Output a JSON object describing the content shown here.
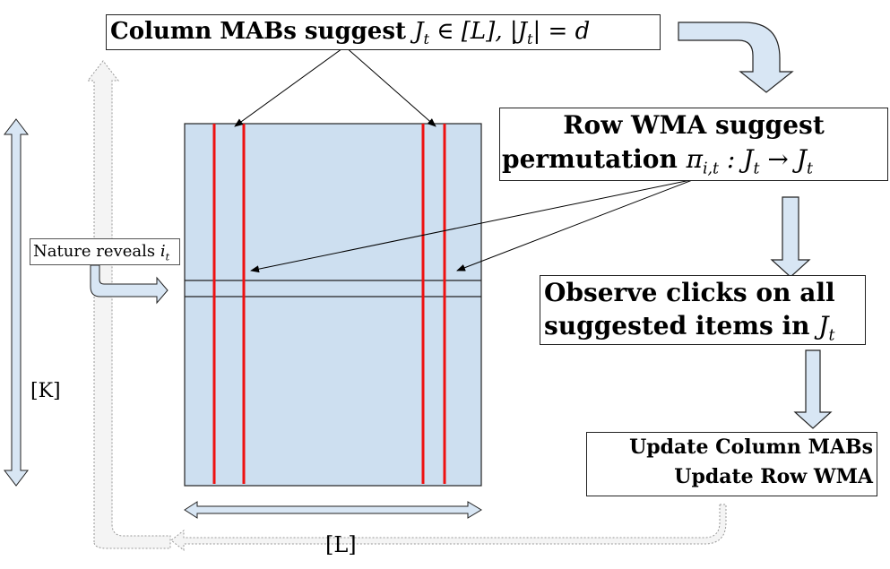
{
  "top_box": {
    "prefix": "Column MABs suggest",
    "math_J": "J",
    "sub_t": "t",
    "math_rest": " ∈ [L],  |J",
    "math_tail": "| = d"
  },
  "row_box": {
    "line1": "Row WMA suggest",
    "line2_text": "permutation",
    "line2_math": "π",
    "line2_sub": "i,t",
    "line2_rest": " : J",
    "line2_sub2": "t",
    "line2_arrow": " → J",
    "line2_sub3": "t"
  },
  "observe_box": {
    "line1": "Observe clicks on all",
    "line2": "suggested items in",
    "math_J": "J",
    "sub_t": "t"
  },
  "update_box": {
    "line1": "Update Column MABs",
    "line2": "Update Row WMA"
  },
  "nature_label": {
    "text": "Nature reveals",
    "math": "i",
    "sub": "t"
  },
  "k_label": "[K]",
  "l_label": "[L]",
  "colors": {
    "matrix_fill": "#cddff0",
    "arrow_fill": "#d8e6f4",
    "red_line": "#ee1111",
    "dotted_stroke": "#888888"
  }
}
